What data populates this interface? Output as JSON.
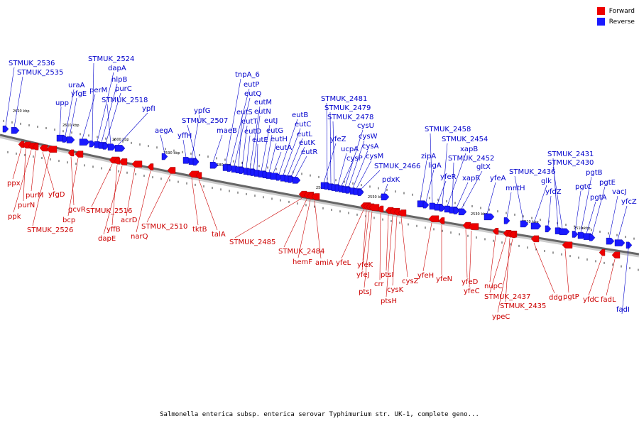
{
  "legend": [
    {
      "label": "Forward",
      "color": "#ee0000"
    },
    {
      "label": "Reverse",
      "color": "#1a1aff"
    }
  ],
  "caption": "Salmonella enterica subsp. enterica serovar Typhimurium str. UK-1, complete geno...",
  "ticks": [
    "2620 kbp",
    "2610 kbp",
    "2600 kbp",
    "2590 kbp",
    "2580 kbp",
    "2570 kbp",
    "2560 kbp",
    "2550 kbp",
    "2540 kbp",
    "2530 kbp",
    "2520 kbp",
    "2510 kbp"
  ],
  "reverse_labels": [
    "STMUK_2536",
    "STMUK_2535",
    "upp",
    "uraA",
    "yfgE",
    "perM",
    "STMUK_2524",
    "dapA",
    "nlpB",
    "purC",
    "STMUK_2518",
    "ypfI",
    "aegA",
    "yffH",
    "ypfG",
    "STMUK_2507",
    "maeB",
    "tnpA_6",
    "eutP",
    "eutQ",
    "eutS",
    "eutT",
    "eutD",
    "eutM",
    "eutN",
    "eutE",
    "eutJ",
    "eutG",
    "eutH",
    "eutA",
    "eutB",
    "eutC",
    "eutL",
    "eutK",
    "eutR",
    "yfeZ",
    "STMUK_2481",
    "STMUK_2479",
    "STMUK_2478",
    "ucpA",
    "cysP",
    "cysU",
    "cysW",
    "cysA",
    "cysM",
    "STMUK_2466",
    "pdxK",
    "zipA",
    "ligA",
    "STMUK_2458",
    "yfeR",
    "STMUK_2454",
    "xapB",
    "STMUK_2452",
    "xapR",
    "gltX",
    "yfeA",
    "mntH",
    "STMUK_2436",
    "glk",
    "yfdZ",
    "STMUK_2431",
    "STMUK_2430",
    "pgtC",
    "pgtB",
    "pgtA",
    "pgtE",
    "vacJ",
    "yfcZ",
    "fadI"
  ],
  "forward_labels": [
    "ppx",
    "purN",
    "ppk",
    "purM",
    "yfgD",
    "STMUK_2526",
    "gcvR",
    "bcp",
    "STMUK_2516",
    "yffB",
    "dapE",
    "acrD",
    "narQ",
    "STMUK_2510",
    "tktB",
    "talA",
    "STMUK_2485",
    "STMUK_2484",
    "hemF",
    "amiA",
    "yfeL",
    "yfeK",
    "yfeJ",
    "ptsJ",
    "crr",
    "ptsI",
    "ptsH",
    "cysK",
    "cysZ",
    "yfeH",
    "yfeN",
    "yfeD",
    "yfeC",
    "nupC",
    "STMUK_2437",
    "STMUK_2435",
    "ypeC",
    "ddg",
    "pgtP",
    "yfdC",
    "fadL"
  ]
}
